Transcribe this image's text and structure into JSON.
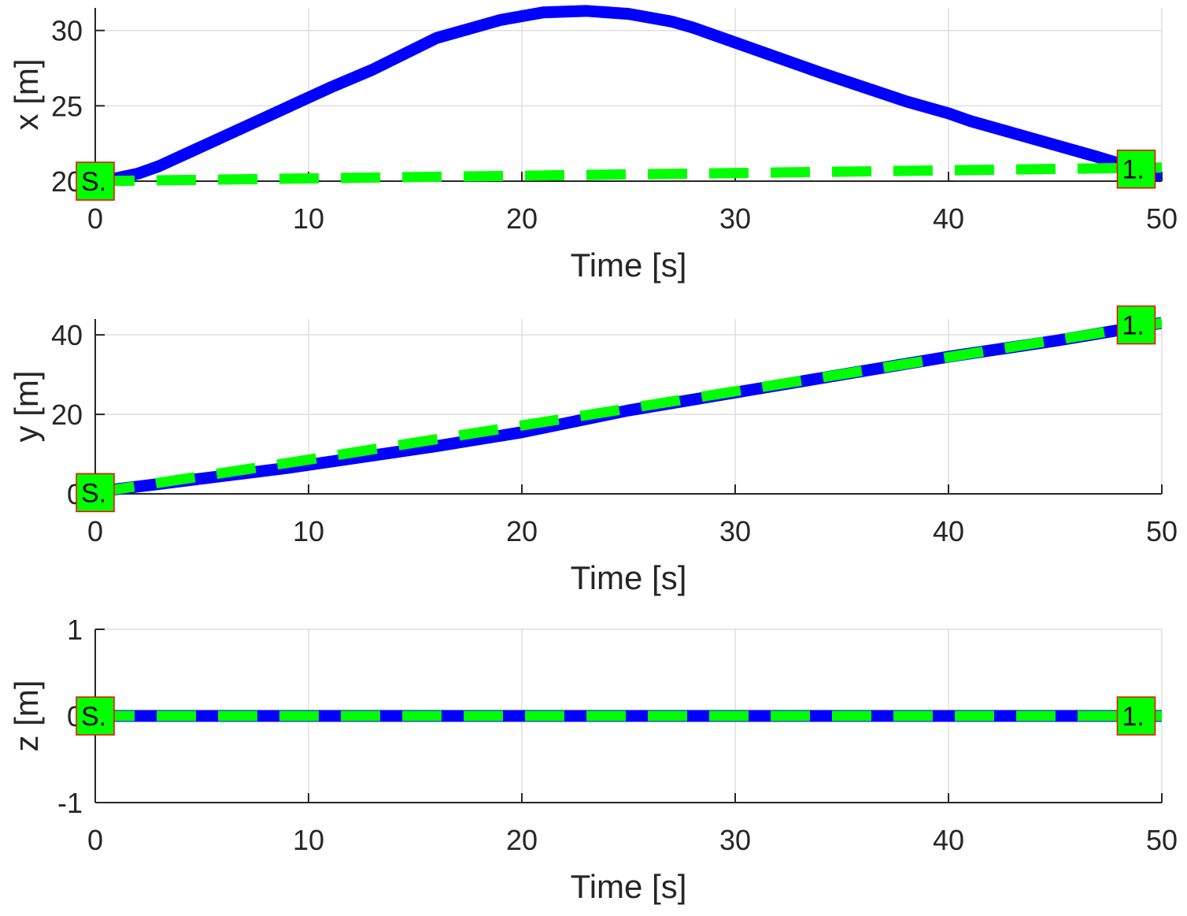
{
  "chart_data": [
    {
      "type": "line",
      "xlabel": "Time [s]",
      "ylabel": "x [m]",
      "xlim": [
        0,
        50
      ],
      "ylim": [
        20,
        31.5
      ],
      "xticks": [
        "0",
        "10",
        "20",
        "30",
        "40",
        "50"
      ],
      "yticks": [
        {
          "value": 20,
          "label": "20"
        },
        {
          "value": 25,
          "label": "25"
        },
        {
          "value": 30,
          "label": "30"
        }
      ],
      "grid": true,
      "series": [
        {
          "color": "#0000ff",
          "style": "solid",
          "x": [
            0,
            1,
            2,
            3,
            5,
            7,
            9,
            11,
            13,
            16,
            19,
            21,
            23,
            25,
            27,
            28,
            30,
            34,
            38,
            40,
            41,
            44,
            47,
            50
          ],
          "y": [
            20.0,
            20.2,
            20.5,
            21.0,
            22.3,
            23.6,
            24.9,
            26.2,
            27.4,
            29.5,
            30.7,
            31.2,
            31.3,
            31.1,
            30.6,
            30.2,
            29.2,
            27.2,
            25.3,
            24.5,
            24.0,
            22.8,
            21.6,
            20.3
          ]
        },
        {
          "color": "#00ff00",
          "style": "dashed",
          "x": [
            0,
            50
          ],
          "y": [
            20.0,
            20.9
          ]
        }
      ],
      "markers": [
        {
          "label": "S.",
          "x": 0,
          "y": 20.0
        },
        {
          "label": "1.",
          "x": 48.8,
          "y": 20.8
        }
      ]
    },
    {
      "type": "line",
      "xlabel": "Time [s]",
      "ylabel": "y [m]",
      "xlim": [
        0,
        50
      ],
      "ylim": [
        0,
        44
      ],
      "xticks": [
        "0",
        "10",
        "20",
        "30",
        "40",
        "50"
      ],
      "yticks": [
        {
          "value": 0,
          "label": "0"
        },
        {
          "value": 20,
          "label": "20"
        },
        {
          "value": 40,
          "label": "40"
        }
      ],
      "grid": true,
      "series": [
        {
          "color": "#0000ff",
          "style": "solid",
          "x": [
            0,
            3,
            9,
            16,
            20,
            25,
            30,
            35,
            40,
            45,
            50
          ],
          "y": [
            0.5,
            2.5,
            6.5,
            12.0,
            15.5,
            21.0,
            25.5,
            30.0,
            34.5,
            38.5,
            43.0
          ]
        },
        {
          "color": "#00ff00",
          "style": "dashed",
          "x": [
            0,
            10,
            20,
            30,
            40,
            50
          ],
          "y": [
            0.3,
            8.6,
            17.2,
            25.8,
            34.4,
            43.0
          ]
        }
      ],
      "markers": [
        {
          "label": "S.",
          "x": 0,
          "y": 0.3
        },
        {
          "label": "1.",
          "x": 48.8,
          "y": 42.5
        }
      ]
    },
    {
      "type": "line",
      "xlabel": "Time [s]",
      "ylabel": "z [m]",
      "xlim": [
        0,
        50
      ],
      "ylim": [
        -1,
        1
      ],
      "xticks": [
        "0",
        "10",
        "20",
        "30",
        "40",
        "50"
      ],
      "yticks": [
        {
          "value": -1,
          "label": "-1"
        },
        {
          "value": 0,
          "label": "0"
        },
        {
          "value": 1,
          "label": "1"
        }
      ],
      "grid": true,
      "series": [
        {
          "color": "#0000ff",
          "style": "solid",
          "x": [
            0,
            50
          ],
          "y": [
            0,
            0
          ]
        },
        {
          "color": "#00ff00",
          "style": "dashed",
          "x": [
            0,
            50
          ],
          "y": [
            0,
            0
          ]
        }
      ],
      "markers": [
        {
          "label": "S.",
          "x": 0,
          "y": 0
        },
        {
          "label": "1.",
          "x": 48.8,
          "y": 0
        }
      ]
    }
  ]
}
